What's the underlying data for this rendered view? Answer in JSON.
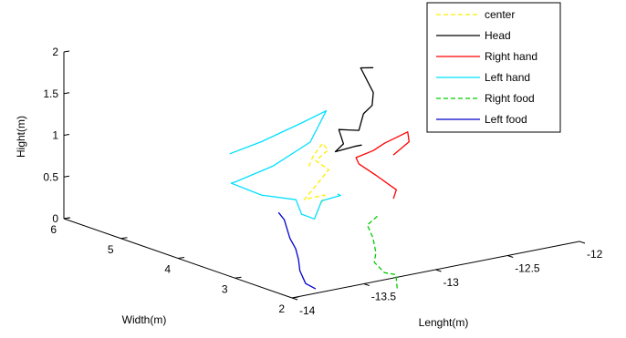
{
  "chart_data": {
    "type": "line",
    "projection": "3d",
    "title": "",
    "xlabel": "Lenght(m)",
    "ylabel": "Width(m)",
    "zlabel": "Hight(m)",
    "xlim": [
      -14,
      -12
    ],
    "ylim": [
      2,
      6
    ],
    "zlim": [
      0,
      2
    ],
    "x_ticks": [
      "-14",
      "-13.5",
      "-13",
      "-12.5",
      "-12"
    ],
    "x_tick_values": [
      -14,
      -13.5,
      -13,
      -12.5,
      -12
    ],
    "y_ticks": [
      "2",
      "3",
      "4",
      "5",
      "6"
    ],
    "y_tick_values": [
      2,
      3,
      4,
      5,
      6
    ],
    "z_ticks": [
      "0",
      "0.5",
      "1",
      "1.5",
      "2"
    ],
    "z_tick_values": [
      0,
      0.5,
      1,
      1.5,
      2
    ],
    "grid": false,
    "legend_position": "top-right",
    "series": [
      {
        "name": "center",
        "color": "#ffee00",
        "dash": "dashed",
        "points": [
          [
            -13.16,
            3.82,
            0.86
          ],
          [
            -13.12,
            3.85,
            0.96
          ],
          [
            -13.08,
            3.78,
            1.12
          ],
          [
            -13.06,
            3.74,
            1.04
          ],
          [
            -13.12,
            3.8,
            0.92
          ],
          [
            -13.05,
            3.75,
            0.8
          ],
          [
            -13.12,
            3.8,
            0.62
          ],
          [
            -13.2,
            3.8,
            0.48
          ],
          [
            -13.05,
            3.82,
            0.48
          ],
          [
            -13.08,
            3.8,
            0.4
          ]
        ]
      },
      {
        "name": "Head",
        "color": "#000000",
        "dash": "solid",
        "points": [
          [
            -12.72,
            3.8,
            1.9
          ],
          [
            -12.8,
            3.82,
            1.92
          ],
          [
            -12.74,
            3.75,
            1.62
          ],
          [
            -12.76,
            3.72,
            1.48
          ],
          [
            -12.82,
            3.72,
            1.4
          ],
          [
            -12.86,
            3.7,
            1.22
          ],
          [
            -12.96,
            3.8,
            1.24
          ],
          [
            -12.92,
            3.82,
            1.05
          ],
          [
            -12.96,
            3.86,
            0.96
          ],
          [
            -12.85,
            3.8,
            1.0
          ],
          [
            -12.8,
            3.8,
            1.0
          ]
        ]
      },
      {
        "name": "Right hand",
        "color": "#ff0000",
        "dash": "solid",
        "points": [
          [
            -12.66,
            3.6,
            0.88
          ],
          [
            -12.57,
            3.55,
            1.02
          ],
          [
            -12.6,
            3.5,
            1.16
          ],
          [
            -12.76,
            3.5,
            1.08
          ],
          [
            -12.8,
            3.6,
            0.98
          ],
          [
            -12.88,
            3.7,
            0.9
          ],
          [
            -12.82,
            3.8,
            0.78
          ],
          [
            -12.7,
            3.8,
            0.6
          ],
          [
            -12.58,
            3.75,
            0.4
          ],
          [
            -12.6,
            3.75,
            0.3
          ]
        ]
      },
      {
        "name": "Left hand",
        "color": "#00e0ff",
        "dash": "solid",
        "points": [
          [
            -13.66,
            3.95,
            1.15
          ],
          [
            -13.44,
            3.95,
            1.22
          ],
          [
            -13.16,
            3.95,
            1.35
          ],
          [
            -13.0,
            3.92,
            1.45
          ],
          [
            -13.1,
            3.95,
            1.1
          ],
          [
            -13.36,
            3.95,
            0.9
          ],
          [
            -13.62,
            3.95,
            0.8
          ],
          [
            -13.55,
            4.2,
            0.7
          ],
          [
            -13.3,
            4.3,
            0.45
          ],
          [
            -13.1,
            4.2,
            0.35
          ],
          [
            -13.1,
            4.1,
            0.2
          ],
          [
            -13.05,
            4.0,
            0.15
          ],
          [
            -13.0,
            4.0,
            0.35
          ],
          [
            -12.9,
            3.92,
            0.4
          ],
          [
            -12.95,
            3.85,
            0.45
          ]
        ]
      },
      {
        "name": "Right food",
        "color": "#00cc00",
        "dash": "dashed",
        "points": [
          [
            -12.95,
            3.15,
            0.35
          ],
          [
            -13.0,
            3.2,
            0.25
          ],
          [
            -12.98,
            3.15,
            0.1
          ],
          [
            -13.0,
            3.05,
            -0.05
          ],
          [
            -13.05,
            2.95,
            -0.12
          ],
          [
            -13.0,
            2.9,
            -0.25
          ],
          [
            -12.92,
            2.9,
            -0.3
          ],
          [
            -12.95,
            2.8,
            -0.45
          ]
        ]
      },
      {
        "name": "Left food",
        "color": "#0000cc",
        "dash": "solid",
        "points": [
          [
            -13.34,
            3.9,
            0.35
          ],
          [
            -13.3,
            3.9,
            0.25
          ],
          [
            -13.3,
            3.8,
            0.05
          ],
          [
            -13.3,
            3.7,
            -0.05
          ],
          [
            -13.32,
            3.6,
            -0.15
          ],
          [
            -13.35,
            3.5,
            -0.25
          ],
          [
            -13.35,
            3.4,
            -0.38
          ],
          [
            -13.3,
            3.35,
            -0.45
          ]
        ]
      }
    ]
  }
}
